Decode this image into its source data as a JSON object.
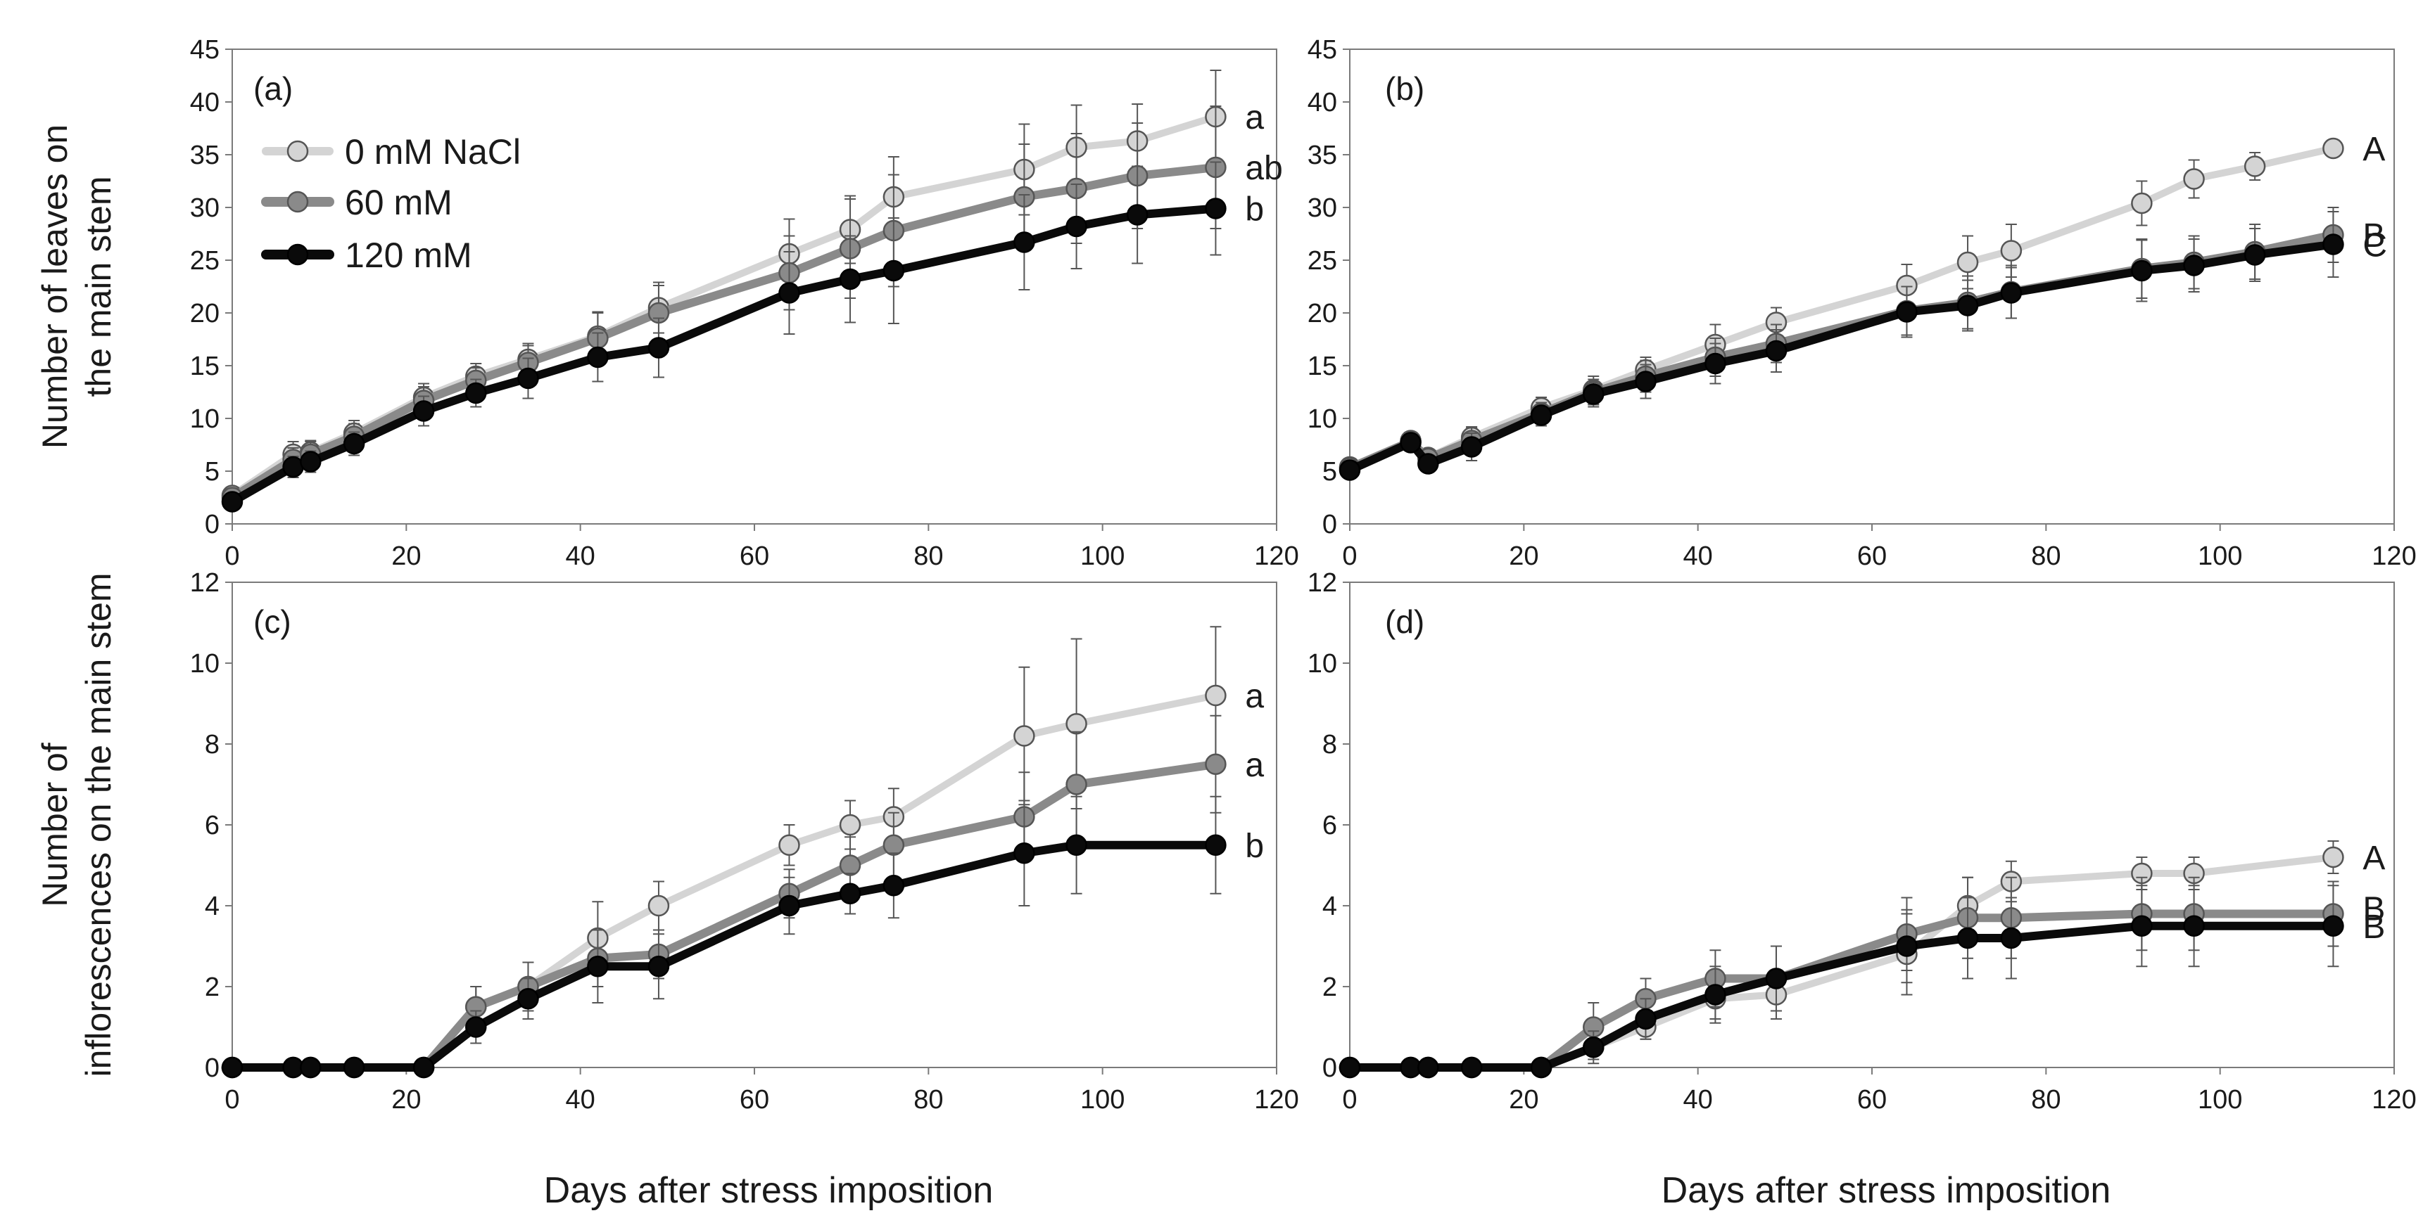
{
  "chart_data": [
    {
      "type": "line",
      "panel": "(a)",
      "ylabel": "Number of leaves on the main stem",
      "xlabel": "",
      "xlim": [
        0,
        120
      ],
      "ylim": [
        0,
        45
      ],
      "xticks": [
        0,
        20,
        40,
        60,
        80,
        100,
        120
      ],
      "yticks": [
        0,
        5,
        10,
        15,
        20,
        25,
        30,
        35,
        40,
        45
      ],
      "grid": false,
      "legend": "top-left",
      "x": [
        0,
        7,
        9,
        14,
        22,
        28,
        34,
        42,
        49,
        64,
        71,
        76,
        91,
        97,
        104,
        113
      ],
      "series": [
        {
          "name": "0 mM NaCl",
          "color": "#d4d4d4",
          "values": [
            2.7,
            6.6,
            6.8,
            8.6,
            12.0,
            14.0,
            15.6,
            17.8,
            20.5,
            25.6,
            27.9,
            31.0,
            33.6,
            35.7,
            36.3,
            38.6
          ],
          "errors": [
            0.6,
            1.2,
            1.1,
            1.2,
            1.3,
            1.2,
            1.5,
            2.2,
            2.4,
            3.3,
            3.2,
            3.8,
            4.3,
            4.0,
            3.5,
            4.4
          ]
        },
        {
          "name": "60 mM",
          "color": "#8a8a8a",
          "values": [
            2.5,
            6.1,
            6.6,
            8.3,
            11.7,
            13.6,
            15.3,
            17.6,
            20.0,
            23.8,
            26.1,
            27.8,
            31.0,
            31.8,
            33.0,
            33.8
          ],
          "errors": [
            0.5,
            1.1,
            1.2,
            1.2,
            1.3,
            1.2,
            1.6,
            2.5,
            2.6,
            3.5,
            4.7,
            5.3,
            5.0,
            5.2,
            5.0,
            5.8
          ]
        },
        {
          "name": "120 mM",
          "color": "#0a0a0a",
          "values": [
            2.1,
            5.4,
            5.9,
            7.6,
            10.7,
            12.4,
            13.8,
            15.8,
            16.7,
            21.9,
            23.2,
            24.0,
            26.7,
            28.2,
            29.3,
            29.9
          ],
          "errors": [
            0.5,
            1.0,
            1.0,
            1.1,
            1.4,
            1.3,
            1.9,
            2.3,
            2.8,
            3.9,
            4.1,
            5.0,
            4.5,
            4.0,
            4.6,
            4.4
          ]
        }
      ],
      "significance": [
        "a",
        "ab",
        "b"
      ]
    },
    {
      "type": "line",
      "panel": "(b)",
      "ylabel": "",
      "xlabel": "",
      "xlim": [
        0,
        120
      ],
      "ylim": [
        0,
        45
      ],
      "xticks": [
        0,
        20,
        40,
        60,
        80,
        100,
        120
      ],
      "yticks": [
        0,
        5,
        10,
        15,
        20,
        25,
        30,
        35,
        40,
        45
      ],
      "grid": false,
      "x": [
        0,
        7,
        9,
        14,
        22,
        28,
        34,
        42,
        49,
        64,
        71,
        76,
        91,
        97,
        104,
        113
      ],
      "series": [
        {
          "name": "0 mM NaCl",
          "color": "#d4d4d4",
          "values": [
            5.4,
            7.9,
            6.3,
            8.2,
            11.0,
            12.7,
            14.6,
            17.0,
            19.1,
            22.6,
            24.8,
            25.9,
            30.4,
            32.7,
            33.9,
            35.6
          ],
          "errors": [
            0.5,
            0.7,
            0.8,
            1.0,
            1.0,
            1.3,
            1.2,
            1.9,
            1.4,
            2.0,
            2.5,
            2.5,
            2.1,
            1.8,
            1.3,
            0.4
          ]
        },
        {
          "name": "60 mM",
          "color": "#8a8a8a",
          "values": [
            5.3,
            7.8,
            6.2,
            7.9,
            10.5,
            12.5,
            14.0,
            15.8,
            17.1,
            20.2,
            21.0,
            22.0,
            24.2,
            24.8,
            25.8,
            27.4
          ],
          "errors": [
            0.5,
            0.7,
            0.8,
            1.2,
            1.0,
            1.2,
            1.5,
            1.8,
            1.8,
            2.3,
            2.5,
            2.5,
            2.8,
            2.5,
            2.6,
            2.6
          ]
        },
        {
          "name": "120 mM",
          "color": "#0a0a0a",
          "values": [
            5.1,
            7.7,
            5.7,
            7.3,
            10.3,
            12.3,
            13.5,
            15.2,
            16.4,
            20.1,
            20.7,
            21.9,
            24.0,
            24.5,
            25.5,
            26.5
          ],
          "errors": [
            0.5,
            0.7,
            0.8,
            1.3,
            1.0,
            1.2,
            1.6,
            1.9,
            2.0,
            2.4,
            2.4,
            2.4,
            2.9,
            2.5,
            2.5,
            3.1
          ]
        }
      ],
      "significance": [
        "A",
        "B",
        "C"
      ]
    },
    {
      "type": "line",
      "panel": "(c)",
      "ylabel": "Number of inflorescences on the main stem",
      "xlabel": "Days after stress imposition",
      "xlim": [
        0,
        120
      ],
      "ylim": [
        0,
        12
      ],
      "xticks": [
        0,
        20,
        40,
        60,
        80,
        100,
        120
      ],
      "yticks": [
        0,
        2,
        4,
        6,
        8,
        10,
        12
      ],
      "grid": false,
      "x": [
        0,
        7,
        9,
        14,
        22,
        28,
        34,
        42,
        49,
        64,
        71,
        76,
        91,
        97,
        113
      ],
      "series": [
        {
          "name": "0 mM NaCl",
          "color": "#d4d4d4",
          "values": [
            0,
            0,
            0,
            0,
            0,
            1.5,
            2.0,
            3.2,
            4.0,
            5.5,
            6.0,
            6.2,
            8.2,
            8.5,
            9.2
          ],
          "errors": [
            0,
            0,
            0,
            0,
            0,
            0.5,
            0.6,
            0.9,
            0.6,
            0.5,
            0.6,
            0.7,
            1.7,
            2.1,
            1.7
          ]
        },
        {
          "name": "60 mM",
          "color": "#8a8a8a",
          "values": [
            0,
            0,
            0,
            0,
            0,
            1.5,
            2.0,
            2.7,
            2.8,
            4.3,
            5.0,
            5.5,
            6.2,
            7.0,
            7.5
          ],
          "errors": [
            0,
            0,
            0,
            0,
            0,
            0.5,
            0.6,
            0.7,
            0.6,
            0.6,
            0.7,
            0.8,
            1.1,
            1.3,
            1.2
          ]
        },
        {
          "name": "120 mM",
          "color": "#0a0a0a",
          "values": [
            0,
            0,
            0,
            0,
            0,
            1.0,
            1.7,
            2.5,
            2.5,
            4.0,
            4.3,
            4.5,
            5.3,
            5.5,
            5.5
          ],
          "errors": [
            0,
            0,
            0,
            0,
            0,
            0.4,
            0.5,
            0.9,
            0.8,
            0.7,
            0.5,
            0.8,
            1.3,
            1.2,
            1.2
          ]
        }
      ],
      "significance": [
        "a",
        "a",
        "b"
      ]
    },
    {
      "type": "line",
      "panel": "(d)",
      "ylabel": "",
      "xlabel": "Days after stress imposition",
      "xlim": [
        0,
        120
      ],
      "ylim": [
        0,
        12
      ],
      "xticks": [
        0,
        20,
        40,
        60,
        80,
        100,
        120
      ],
      "yticks": [
        0,
        2,
        4,
        6,
        8,
        10,
        12
      ],
      "grid": false,
      "x": [
        0,
        7,
        9,
        14,
        22,
        28,
        34,
        42,
        49,
        64,
        71,
        76,
        91,
        97,
        113
      ],
      "series": [
        {
          "name": "0 mM NaCl",
          "color": "#d4d4d4",
          "values": [
            0,
            0,
            0,
            0,
            0,
            0.5,
            1.0,
            1.7,
            1.8,
            2.8,
            4.0,
            4.6,
            4.8,
            4.8,
            5.2
          ],
          "errors": [
            0,
            0,
            0,
            0,
            0,
            0.3,
            0.3,
            0.5,
            0.6,
            1.0,
            0.7,
            0.5,
            0.4,
            0.4,
            0.4
          ]
        },
        {
          "name": "60 mM",
          "color": "#8a8a8a",
          "values": [
            0,
            0,
            0,
            0,
            0,
            1.0,
            1.7,
            2.2,
            2.2,
            3.3,
            3.7,
            3.7,
            3.8,
            3.8,
            3.8
          ],
          "errors": [
            0,
            0,
            0,
            0,
            0,
            0.6,
            0.5,
            0.7,
            0.8,
            0.9,
            1.0,
            1.0,
            0.9,
            0.9,
            0.8
          ]
        },
        {
          "name": "120 mM",
          "color": "#0a0a0a",
          "values": [
            0,
            0,
            0,
            0,
            0,
            0.5,
            1.2,
            1.8,
            2.2,
            3.0,
            3.2,
            3.2,
            3.5,
            3.5,
            3.5
          ],
          "errors": [
            0,
            0,
            0,
            0,
            0,
            0.4,
            0.5,
            0.7,
            0.8,
            0.9,
            1.0,
            1.0,
            1.0,
            1.0,
            1.0
          ]
        }
      ],
      "significance": [
        "A",
        "B",
        "B"
      ]
    }
  ]
}
